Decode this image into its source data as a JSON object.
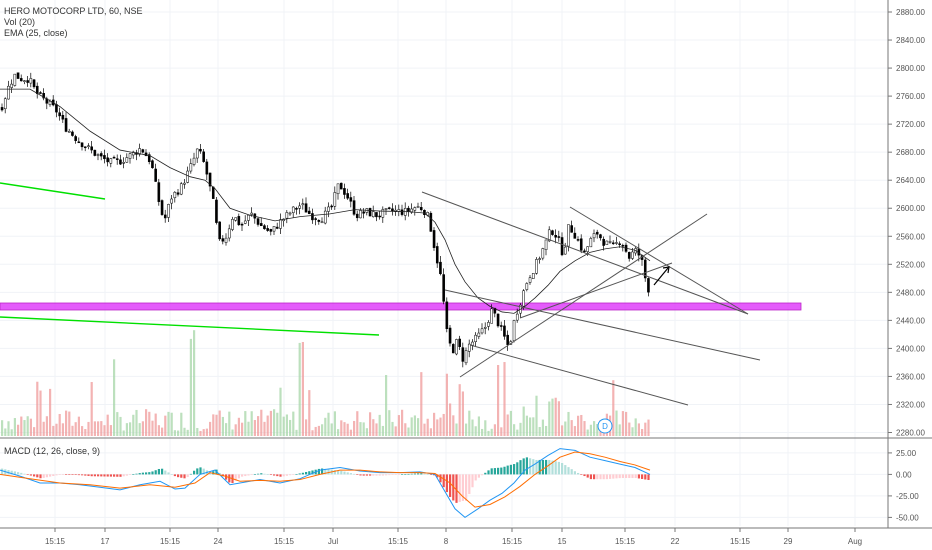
{
  "legend": {
    "symbol_line": "HERO MOTOCORP LTD, 60, NSE",
    "vol_line": "Vol (20)",
    "ema_line": "EMA (25, close)",
    "macd_line": "MACD (12, 26, close, 9)"
  },
  "dividend_marker": "D",
  "colors": {
    "up": "#26a69a",
    "down": "#000000",
    "vol_up": "#a5d6a7",
    "vol_down": "#ef9a9a",
    "ema": "#222222",
    "macd": "#2196f3",
    "signal": "#ff6d00",
    "hist_up": "#26a69a",
    "hist_down": "#ef5350",
    "support_zone": "#e040fb",
    "green_line": "#00e000",
    "trendline": "#555555"
  },
  "chart_data": [
    {
      "type": "candlestick",
      "title": "HERO MOTOCORP LTD, 60, NSE",
      "price_ticks": [
        2280,
        2320,
        2360,
        2400,
        2440,
        2480,
        2520,
        2560,
        2600,
        2640,
        2680,
        2720,
        2760,
        2800,
        2840,
        2880
      ],
      "price_range": [
        2275,
        2890
      ],
      "x_tick_labels": [
        "15:15",
        "17",
        "15:15",
        "24",
        "15:15",
        "Jul",
        "15:15",
        "8",
        "15:15",
        "15",
        "15:15",
        "22",
        "15:15",
        "29",
        "Aug"
      ],
      "price_path": [
        [
          0,
          2742
        ],
        [
          8,
          2775
        ],
        [
          14,
          2790
        ],
        [
          20,
          2785
        ],
        [
          28,
          2785
        ],
        [
          35,
          2765
        ],
        [
          45,
          2752
        ],
        [
          55,
          2740
        ],
        [
          65,
          2715
        ],
        [
          75,
          2700
        ],
        [
          90,
          2682
        ],
        [
          100,
          2672
        ],
        [
          110,
          2665
        ],
        [
          120,
          2668
        ],
        [
          130,
          2676
        ],
        [
          140,
          2686
        ],
        [
          150,
          2666
        ],
        [
          157,
          2615
        ],
        [
          163,
          2580
        ],
        [
          170,
          2615
        ],
        [
          180,
          2630
        ],
        [
          190,
          2660
        ],
        [
          197,
          2685
        ],
        [
          204,
          2660
        ],
        [
          212,
          2610
        ],
        [
          218,
          2550
        ],
        [
          225,
          2560
        ],
        [
          232,
          2590
        ],
        [
          240,
          2575
        ],
        [
          250,
          2592
        ],
        [
          260,
          2575
        ],
        [
          270,
          2565
        ],
        [
          280,
          2582
        ],
        [
          290,
          2595
        ],
        [
          300,
          2605
        ],
        [
          310,
          2590
        ],
        [
          320,
          2585
        ],
        [
          330,
          2600
        ],
        [
          338,
          2635
        ],
        [
          346,
          2618
        ],
        [
          355,
          2590
        ],
        [
          365,
          2595
        ],
        [
          375,
          2590
        ],
        [
          390,
          2596
        ],
        [
          405,
          2595
        ],
        [
          415,
          2602
        ],
        [
          422,
          2600
        ],
        [
          428,
          2585
        ],
        [
          434,
          2540
        ],
        [
          440,
          2500
        ],
        [
          446,
          2420
        ],
        [
          451,
          2395
        ],
        [
          456,
          2410
        ],
        [
          462,
          2385
        ],
        [
          468,
          2405
        ],
        [
          476,
          2415
        ],
        [
          484,
          2430
        ],
        [
          491,
          2455
        ],
        [
          496,
          2440
        ],
        [
          502,
          2420
        ],
        [
          508,
          2400
        ],
        [
          514,
          2445
        ],
        [
          520,
          2470
        ],
        [
          527,
          2500
        ],
        [
          535,
          2520
        ],
        [
          543,
          2545
        ],
        [
          550,
          2570
        ],
        [
          556,
          2560
        ],
        [
          562,
          2535
        ],
        [
          568,
          2575
        ],
        [
          575,
          2560
        ],
        [
          583,
          2535
        ],
        [
          590,
          2555
        ],
        [
          596,
          2565
        ],
        [
          604,
          2550
        ],
        [
          612,
          2545
        ],
        [
          620,
          2555
        ],
        [
          628,
          2530
        ],
        [
          634,
          2540
        ],
        [
          640,
          2530
        ],
        [
          646,
          2488
        ],
        [
          650,
          2480
        ]
      ],
      "ema25_path": [
        [
          0,
          2770
        ],
        [
          30,
          2770
        ],
        [
          60,
          2745
        ],
        [
          90,
          2710
        ],
        [
          120,
          2683
        ],
        [
          150,
          2675
        ],
        [
          170,
          2658
        ],
        [
          190,
          2645
        ],
        [
          205,
          2640
        ],
        [
          215,
          2628
        ],
        [
          230,
          2600
        ],
        [
          250,
          2590
        ],
        [
          275,
          2582
        ],
        [
          300,
          2588
        ],
        [
          330,
          2592
        ],
        [
          355,
          2598
        ],
        [
          380,
          2596
        ],
        [
          410,
          2595
        ],
        [
          425,
          2593
        ],
        [
          435,
          2580
        ],
        [
          445,
          2555
        ],
        [
          455,
          2520
        ],
        [
          465,
          2495
        ],
        [
          478,
          2472
        ],
        [
          490,
          2460
        ],
        [
          502,
          2452
        ],
        [
          514,
          2450
        ],
        [
          525,
          2460
        ],
        [
          535,
          2472
        ],
        [
          548,
          2490
        ],
        [
          560,
          2510
        ],
        [
          575,
          2525
        ],
        [
          590,
          2537
        ],
        [
          605,
          2542
        ],
        [
          620,
          2545
        ],
        [
          635,
          2540
        ],
        [
          650,
          2525
        ]
      ]
    },
    {
      "type": "bar",
      "title": "Vol (20)",
      "note": "volume histogram overlaid on price pane; no axis values shown"
    },
    {
      "type": "line",
      "title": "MACD (12, 26, close, 9)",
      "y_ticks": [
        25,
        0,
        -25,
        -50
      ],
      "y_range": [
        -60,
        40
      ],
      "series": [
        {
          "name": "MACD",
          "points": [
            [
              0,
              5
            ],
            [
              20,
              -2
            ],
            [
              40,
              -10
            ],
            [
              60,
              -10
            ],
            [
              80,
              -12
            ],
            [
              100,
              -15
            ],
            [
              120,
              -18
            ],
            [
              140,
              -12
            ],
            [
              160,
              -8
            ],
            [
              175,
              -17
            ],
            [
              185,
              -16
            ],
            [
              200,
              0
            ],
            [
              215,
              5
            ],
            [
              230,
              -12
            ],
            [
              245,
              -9
            ],
            [
              260,
              -6
            ],
            [
              280,
              -10
            ],
            [
              300,
              -5
            ],
            [
              320,
              5
            ],
            [
              340,
              8
            ],
            [
              360,
              4
            ],
            [
              380,
              2
            ],
            [
              400,
              2
            ],
            [
              420,
              3
            ],
            [
              435,
              0
            ],
            [
              445,
              -20
            ],
            [
              455,
              -40
            ],
            [
              465,
              -50
            ],
            [
              478,
              -40
            ],
            [
              490,
              -30
            ],
            [
              502,
              -22
            ],
            [
              514,
              -10
            ],
            [
              525,
              5
            ],
            [
              535,
              12
            ],
            [
              548,
              22
            ],
            [
              560,
              30
            ],
            [
              575,
              28
            ],
            [
              590,
              20
            ],
            [
              605,
              16
            ],
            [
              620,
              12
            ],
            [
              635,
              8
            ],
            [
              650,
              0
            ]
          ]
        },
        {
          "name": "Signal",
          "points": [
            [
              0,
              0
            ],
            [
              30,
              -5
            ],
            [
              60,
              -10
            ],
            [
              90,
              -12
            ],
            [
              120,
              -16
            ],
            [
              150,
              -12
            ],
            [
              175,
              -15
            ],
            [
              195,
              -10
            ],
            [
              210,
              2
            ],
            [
              225,
              -2
            ],
            [
              240,
              -8
            ],
            [
              260,
              -7
            ],
            [
              280,
              -8
            ],
            [
              300,
              -6
            ],
            [
              320,
              0
            ],
            [
              340,
              5
            ],
            [
              360,
              5
            ],
            [
              380,
              3
            ],
            [
              400,
              2
            ],
            [
              420,
              2
            ],
            [
              435,
              1
            ],
            [
              450,
              -10
            ],
            [
              462,
              -25
            ],
            [
              475,
              -38
            ],
            [
              490,
              -35
            ],
            [
              505,
              -26
            ],
            [
              520,
              -14
            ],
            [
              535,
              0
            ],
            [
              548,
              10
            ],
            [
              560,
              20
            ],
            [
              575,
              26
            ],
            [
              590,
              24
            ],
            [
              605,
              20
            ],
            [
              620,
              15
            ],
            [
              635,
              11
            ],
            [
              650,
              5
            ]
          ]
        }
      ]
    }
  ]
}
